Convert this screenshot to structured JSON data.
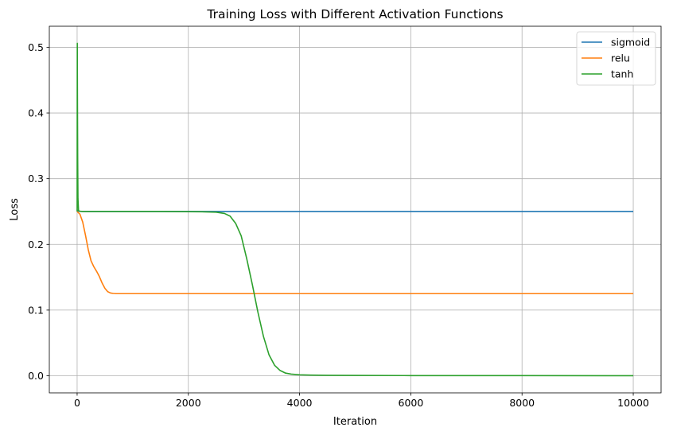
{
  "chart_data": {
    "type": "line",
    "title": "Training Loss with Different Activation Functions",
    "xlabel": "Iteration",
    "ylabel": "Loss",
    "xlim": [
      -500,
      10500
    ],
    "ylim": [
      -0.026,
      0.532
    ],
    "xticks": [
      0,
      2000,
      4000,
      6000,
      8000,
      10000
    ],
    "yticks": [
      0.0,
      0.1,
      0.2,
      0.3,
      0.4,
      0.5
    ],
    "xtick_labels": [
      "0",
      "2000",
      "4000",
      "6000",
      "8000",
      "10000"
    ],
    "ytick_labels": [
      "0.0",
      "0.1",
      "0.2",
      "0.3",
      "0.4",
      "0.5"
    ],
    "grid": true,
    "legend_position": "top-right",
    "series": [
      {
        "name": "sigmoid",
        "color": "#1f77b4",
        "x": [
          0,
          5,
          10,
          20,
          50,
          200,
          1000,
          2000,
          4000,
          6000,
          8000,
          10000
        ],
        "y": [
          0.253,
          0.252,
          0.251,
          0.2505,
          0.2502,
          0.2501,
          0.25,
          0.25,
          0.25,
          0.25,
          0.25,
          0.25
        ]
      },
      {
        "name": "relu",
        "color": "#ff7f0e",
        "x": [
          0,
          50,
          100,
          150,
          200,
          250,
          300,
          350,
          400,
          450,
          500,
          550,
          600,
          650,
          700,
          800,
          1000,
          2000,
          4000,
          6000,
          8000,
          10000
        ],
        "y": [
          0.25,
          0.246,
          0.234,
          0.214,
          0.192,
          0.175,
          0.166,
          0.159,
          0.151,
          0.141,
          0.133,
          0.128,
          0.126,
          0.1253,
          0.125,
          0.125,
          0.125,
          0.125,
          0.125,
          0.125,
          0.125,
          0.125
        ]
      },
      {
        "name": "tanh",
        "color": "#2ca02c",
        "x": [
          0,
          3,
          6,
          10,
          15,
          25,
          40,
          100,
          500,
          1000,
          1500,
          2000,
          2300,
          2500,
          2650,
          2750,
          2850,
          2950,
          3050,
          3150,
          3250,
          3350,
          3450,
          3550,
          3650,
          3750,
          3850,
          4000,
          4200,
          4500,
          5000,
          6000,
          8000,
          10000
        ],
        "y": [
          0.25,
          0.506,
          0.42,
          0.33,
          0.27,
          0.252,
          0.2505,
          0.25,
          0.25,
          0.25,
          0.25,
          0.2498,
          0.2495,
          0.249,
          0.247,
          0.243,
          0.232,
          0.213,
          0.178,
          0.139,
          0.097,
          0.06,
          0.032,
          0.016,
          0.008,
          0.004,
          0.0025,
          0.0015,
          0.001,
          0.0007,
          0.0005,
          0.0003,
          0.0002,
          0.0001
        ]
      }
    ]
  }
}
